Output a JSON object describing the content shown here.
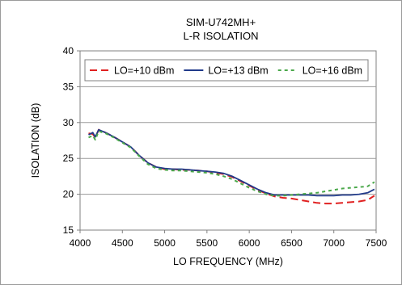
{
  "chart_data": {
    "type": "line",
    "title": "SIM-U742MH+",
    "subtitle": "L-R ISOLATION",
    "xlabel": "LO FREQUENCY (MHz)",
    "ylabel": "ISOLATION (dB)",
    "xlim": [
      4000,
      7500
    ],
    "ylim": [
      15,
      40
    ],
    "xticks": [
      4000,
      4500,
      5000,
      5500,
      6000,
      6500,
      7000,
      7500
    ],
    "yticks": [
      15,
      20,
      25,
      30,
      35,
      40
    ],
    "grid": "horizontal",
    "legend_position": "top",
    "series": [
      {
        "name": "LO=+10 dBm",
        "color": "#e02020",
        "style": "dashed",
        "x": [
          4100,
          4150,
          4180,
          4220,
          4300,
          4400,
          4500,
          4600,
          4700,
          4800,
          4900,
          5000,
          5100,
          5200,
          5300,
          5400,
          5500,
          5600,
          5700,
          5800,
          5900,
          6000,
          6100,
          6200,
          6300,
          6400,
          6500,
          6600,
          6700,
          6800,
          6900,
          7000,
          7100,
          7200,
          7300,
          7400,
          7480
        ],
        "y": [
          28.5,
          28.4,
          27.9,
          29.0,
          28.6,
          28.0,
          27.3,
          26.6,
          25.4,
          24.4,
          23.8,
          23.5,
          23.5,
          23.4,
          23.4,
          23.3,
          23.2,
          23.0,
          22.8,
          22.4,
          21.8,
          21.2,
          20.6,
          20.1,
          19.7,
          19.5,
          19.4,
          19.2,
          19.0,
          18.8,
          18.7,
          18.7,
          18.8,
          18.9,
          19.0,
          19.2,
          19.8
        ]
      },
      {
        "name": "LO=+13 dBm",
        "color": "#203a8a",
        "style": "solid",
        "x": [
          4100,
          4150,
          4180,
          4220,
          4300,
          4400,
          4500,
          4600,
          4700,
          4800,
          4900,
          5000,
          5100,
          5200,
          5300,
          5400,
          5500,
          5600,
          5700,
          5800,
          5900,
          6000,
          6100,
          6200,
          6300,
          6400,
          6500,
          6600,
          6700,
          6800,
          6900,
          7000,
          7100,
          7200,
          7300,
          7400,
          7480
        ],
        "y": [
          28.3,
          28.6,
          28.0,
          29.0,
          28.6,
          28.0,
          27.3,
          26.6,
          25.4,
          24.4,
          23.8,
          23.6,
          23.5,
          23.5,
          23.4,
          23.3,
          23.2,
          23.1,
          22.9,
          22.5,
          21.9,
          21.3,
          20.7,
          20.2,
          19.9,
          19.9,
          19.9,
          19.9,
          19.9,
          19.8,
          19.8,
          19.8,
          19.9,
          19.9,
          20.0,
          20.2,
          20.7
        ]
      },
      {
        "name": "LO=+16 dBm",
        "color": "#4aa84a",
        "style": "dotted",
        "x": [
          4100,
          4150,
          4180,
          4220,
          4300,
          4400,
          4500,
          4600,
          4700,
          4800,
          4900,
          5000,
          5100,
          5200,
          5300,
          5400,
          5500,
          5600,
          5700,
          5800,
          5900,
          6000,
          6100,
          6200,
          6300,
          6400,
          6500,
          6600,
          6700,
          6800,
          6900,
          7000,
          7100,
          7200,
          7300,
          7400,
          7480
        ],
        "y": [
          27.9,
          28.2,
          27.6,
          28.8,
          28.5,
          27.9,
          27.2,
          26.5,
          25.3,
          24.2,
          23.6,
          23.4,
          23.3,
          23.3,
          23.2,
          23.1,
          23.0,
          22.8,
          22.5,
          22.1,
          21.5,
          20.9,
          20.4,
          20.0,
          19.8,
          19.8,
          19.9,
          20.0,
          20.1,
          20.2,
          20.4,
          20.6,
          20.8,
          20.9,
          21.0,
          21.1,
          21.7
        ]
      }
    ]
  }
}
